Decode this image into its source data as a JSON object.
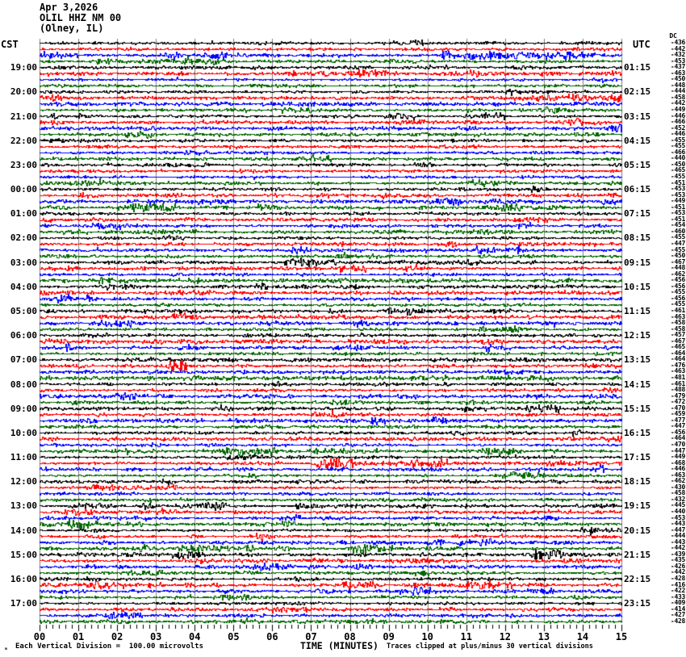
{
  "header": {
    "date": "Apr 3,2026",
    "station": "OLIL HHZ NM 00",
    "location": "(Olney, IL)"
  },
  "axis": {
    "left_tz": "CST",
    "right_tz": "UTC",
    "x_title": "TIME (MINUTES)",
    "x_tick_labels": [
      "00",
      "01",
      "02",
      "03",
      "04",
      "05",
      "06",
      "07",
      "08",
      "09",
      "10",
      "11",
      "12",
      "13",
      "14",
      "15"
    ]
  },
  "footer": {
    "corner_mark": "ₘ",
    "scale_note": "Each Vertical Division =  100.00 microvolts",
    "clip_note": "Traces clipped at plus/minus 30 vertical divisions"
  },
  "left_times": [
    "19:00",
    "20:00",
    "21:00",
    "22:00",
    "23:00",
    "00:00",
    "01:00",
    "02:00",
    "03:00",
    "04:00",
    "05:00",
    "06:00",
    "07:00",
    "08:00",
    "09:00",
    "10:00",
    "11:00",
    "12:00",
    "13:00",
    "14:00",
    "15:00",
    "16:00",
    "17:00"
  ],
  "right_times": [
    "01:15",
    "02:15",
    "03:15",
    "04:15",
    "05:15",
    "06:15",
    "07:15",
    "08:15",
    "09:15",
    "10:15",
    "11:15",
    "12:15",
    "13:15",
    "14:15",
    "15:15",
    "16:15",
    "17:15",
    "18:15",
    "19:15",
    "20:15",
    "21:15",
    "22:15",
    "23:15"
  ],
  "dc_column": {
    "header": "DC"
  },
  "chart_data": {
    "type": "line",
    "subtype": "helicorder-seismogram",
    "title": "OLIL HHZ NM 00 (Olney, IL) Apr 3,2026",
    "xlabel": "TIME (MINUTES)",
    "x_range_minutes": [
      0,
      15
    ],
    "minor_tick_seconds": 10,
    "rows_count": 96,
    "row_duration_minutes": 15,
    "first_row_start_cst": "18:00",
    "quarter_color_cycle": [
      ":00 black",
      ":15 red",
      ":30 blue",
      ":45 green"
    ],
    "trace_colors": [
      "#000000",
      "#ff0000",
      "#0000ff",
      "#006600"
    ],
    "grid_color": "#808080",
    "content_note": "continuous ambient seismic noise traces, no large earthquake arrivals; occasional short noise bursts",
    "dc_offsets": [
      -436,
      -442,
      -432,
      -453,
      -437,
      -463,
      -450,
      -448,
      -444,
      -458,
      -442,
      -449,
      -446,
      -466,
      -452,
      -446,
      -455,
      -455,
      -466,
      -440,
      -450,
      -465,
      -455,
      -451,
      -453,
      -453,
      -449,
      -451,
      -453,
      -451,
      -454,
      -460,
      -455,
      -447,
      -455,
      -450,
      -467,
      -448,
      -462,
      -456,
      -456,
      -455,
      -456,
      -455,
      -461,
      -463,
      -458,
      -458,
      -457,
      -467,
      -465,
      -464,
      -464,
      -476,
      -463,
      -481,
      -461,
      -488,
      -479,
      -472,
      -470,
      -459,
      -477,
      -447,
      -456,
      -464,
      -470,
      -447,
      -449,
      -468,
      -446,
      -463,
      -462,
      -430,
      -458,
      -432,
      -445,
      -440,
      -453,
      -443,
      -447,
      -444,
      -443,
      -442,
      -439,
      -435,
      -426,
      -442,
      -428,
      -416,
      -422,
      -433,
      -409,
      -414,
      -427,
      -428
    ],
    "noise_events": [
      {
        "row": 2,
        "m0": 10.3,
        "m1": 14.3,
        "amp": 2.2
      },
      {
        "row": 3,
        "m0": 1.4,
        "m1": 4.6,
        "amp": 2.6
      },
      {
        "row": 5,
        "m0": 8.1,
        "m1": 9.2,
        "amp": 1.8
      },
      {
        "row": 5,
        "m0": 11.0,
        "m1": 12.0,
        "amp": 1.6
      },
      {
        "row": 9,
        "m0": 12.2,
        "m1": 15.0,
        "amp": 2.4
      },
      {
        "row": 13,
        "m0": 13.0,
        "m1": 14.6,
        "amp": 1.8
      },
      {
        "row": 16,
        "m0": 0.0,
        "m1": 1.5,
        "amp": 1.6
      },
      {
        "row": 36,
        "m0": 6.3,
        "m1": 6.9,
        "amp": 2.2
      },
      {
        "row": 36,
        "m0": 11.0,
        "m1": 11.5,
        "amp": 1.8
      },
      {
        "row": 45,
        "m0": 11.7,
        "m1": 12.3,
        "amp": 1.9
      },
      {
        "row": 53,
        "m0": 3.3,
        "m1": 3.8,
        "amp": 3.0
      },
      {
        "row": 55,
        "m0": 0.0,
        "m1": 15.0,
        "amp": 1.5
      },
      {
        "row": 55,
        "m0": 12.6,
        "m1": 13.1,
        "amp": 2.2
      },
      {
        "row": 64,
        "m0": 13.7,
        "m1": 14.1,
        "amp": 3.5
      },
      {
        "row": 69,
        "m0": 7.0,
        "m1": 10.5,
        "amp": 3.0
      },
      {
        "row": 69,
        "m0": 13.0,
        "m1": 15.0,
        "amp": 2.0
      },
      {
        "row": 73,
        "m0": 1.2,
        "m1": 4.2,
        "amp": 2.2
      },
      {
        "row": 76,
        "m0": 2.6,
        "m1": 3.0,
        "amp": 3.8
      },
      {
        "row": 76,
        "m0": 4.0,
        "m1": 4.8,
        "amp": 2.2
      },
      {
        "row": 77,
        "m0": 0.3,
        "m1": 0.9,
        "amp": 2.0
      },
      {
        "row": 83,
        "m0": 2.5,
        "m1": 5.5,
        "amp": 2.0
      },
      {
        "row": 87,
        "m0": 11.3,
        "m1": 11.8,
        "amp": 2.0
      },
      {
        "row": 89,
        "m0": 11.0,
        "m1": 12.2,
        "amp": 2.2
      }
    ]
  }
}
